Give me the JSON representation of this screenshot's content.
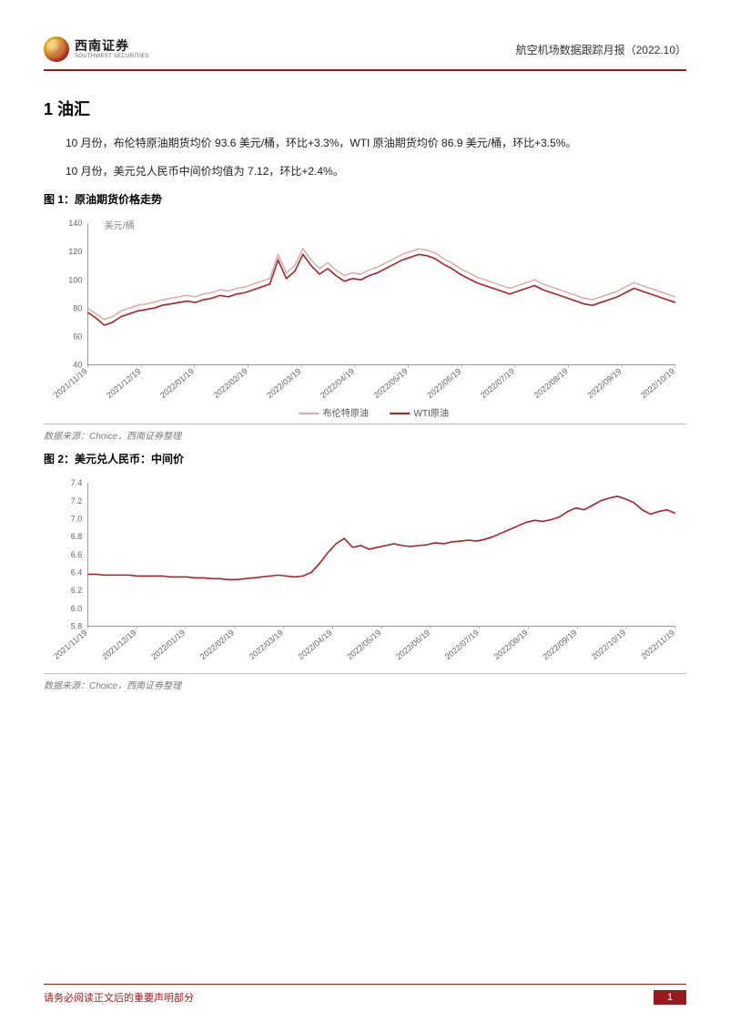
{
  "header": {
    "logo_cn": "西南证券",
    "logo_en": "SOUTHWEST SECURITIES",
    "doc_title": "航空机场数据跟踪月报（2022.10）"
  },
  "section": {
    "title": "1 油汇",
    "para1": "10 月份，布伦特原油期货均价 93.6 美元/桶，环比+3.3%，WTI 原油期货均价 86.9 美元/桶，环比+3.5%。",
    "para2": "10 月份，美元兑人民币中间价均值为 7.12，环比+2.4%。"
  },
  "fig1": {
    "title": "图 1：原油期货价格走势",
    "type": "line",
    "y_unit": "美元/桶",
    "x_labels": [
      "2021/11/19",
      "2021/12/19",
      "2022/01/19",
      "2022/02/19",
      "2022/03/19",
      "2022/04/19",
      "2022/05/19",
      "2022/06/19",
      "2022/07/19",
      "2022/08/19",
      "2022/09/19",
      "2022/10/19"
    ],
    "ylim": [
      40,
      140
    ],
    "ytick_step": 20,
    "series": {
      "brent": {
        "label": "布伦特原油",
        "color": "#d9a6a6",
        "line_width": 1.4,
        "data": [
          80,
          76,
          72,
          74,
          78,
          80,
          82,
          83,
          84,
          86,
          87,
          88,
          89,
          88,
          90,
          91,
          93,
          92,
          94,
          95,
          97,
          99,
          101,
          118,
          105,
          110,
          122,
          114,
          108,
          112,
          107,
          103,
          105,
          104,
          107,
          109,
          112,
          115,
          118,
          120,
          122,
          121,
          119,
          115,
          112,
          108,
          105,
          102,
          100,
          98,
          96,
          94,
          96,
          98,
          100,
          97,
          95,
          93,
          91,
          89,
          87,
          86,
          88,
          90,
          92,
          95,
          98,
          96,
          94,
          92,
          90,
          88
        ]
      },
      "wti": {
        "label": "WTI原油",
        "color": "#a8232a",
        "line_width": 1.6,
        "data": [
          77,
          73,
          68,
          70,
          74,
          76,
          78,
          79,
          80,
          82,
          83,
          84,
          85,
          84,
          86,
          87,
          89,
          88,
          90,
          91,
          93,
          95,
          97,
          114,
          101,
          106,
          118,
          110,
          104,
          108,
          103,
          99,
          101,
          100,
          103,
          105,
          108,
          111,
          114,
          116,
          118,
          117,
          115,
          111,
          108,
          104,
          101,
          98,
          96,
          94,
          92,
          90,
          92,
          94,
          96,
          93,
          91,
          89,
          87,
          85,
          83,
          82,
          84,
          86,
          88,
          91,
          94,
          92,
          90,
          88,
          86,
          84
        ]
      }
    },
    "background_color": "#ffffff",
    "grid_color": "#d9d9d9",
    "axis_color": "#666666",
    "axis_fontsize": 9,
    "label_fontsize": 10,
    "source": "数据来源：Choice，西南证券整理"
  },
  "fig2": {
    "title": "图 2：美元兑人民币：中间价",
    "type": "line",
    "x_labels": [
      "2021/11/19",
      "2021/12/19",
      "2022/01/19",
      "2022/02/19",
      "2022/03/19",
      "2022/04/19",
      "2022/05/19",
      "2022/06/19",
      "2022/07/19",
      "2022/08/19",
      "2022/09/19",
      "2022/10/19",
      "2022/11/19"
    ],
    "ylim": [
      5.8,
      7.4
    ],
    "ytick_step": 0.2,
    "series": {
      "usdcny": {
        "label": "美元兑人民币中间价",
        "color": "#a8232a",
        "line_width": 1.6,
        "data": [
          6.38,
          6.38,
          6.37,
          6.37,
          6.37,
          6.37,
          6.36,
          6.36,
          6.36,
          6.36,
          6.35,
          6.35,
          6.35,
          6.34,
          6.34,
          6.33,
          6.33,
          6.32,
          6.32,
          6.33,
          6.34,
          6.35,
          6.36,
          6.37,
          6.36,
          6.35,
          6.36,
          6.4,
          6.5,
          6.62,
          6.72,
          6.78,
          6.68,
          6.7,
          6.66,
          6.68,
          6.7,
          6.72,
          6.7,
          6.69,
          6.7,
          6.71,
          6.73,
          6.72,
          6.74,
          6.75,
          6.76,
          6.75,
          6.77,
          6.8,
          6.84,
          6.88,
          6.92,
          6.96,
          6.98,
          6.97,
          6.99,
          7.02,
          7.08,
          7.12,
          7.1,
          7.15,
          7.2,
          7.23,
          7.25,
          7.22,
          7.18,
          7.1,
          7.05,
          7.08,
          7.1,
          7.06
        ]
      }
    },
    "background_color": "#ffffff",
    "grid_color": "#d9d9d9",
    "axis_color": "#666666",
    "axis_fontsize": 9,
    "source": "数据来源：Choice，西南证券整理"
  },
  "footer": {
    "disclaimer": "请务必阅读正文后的重要声明部分",
    "page": "1"
  }
}
